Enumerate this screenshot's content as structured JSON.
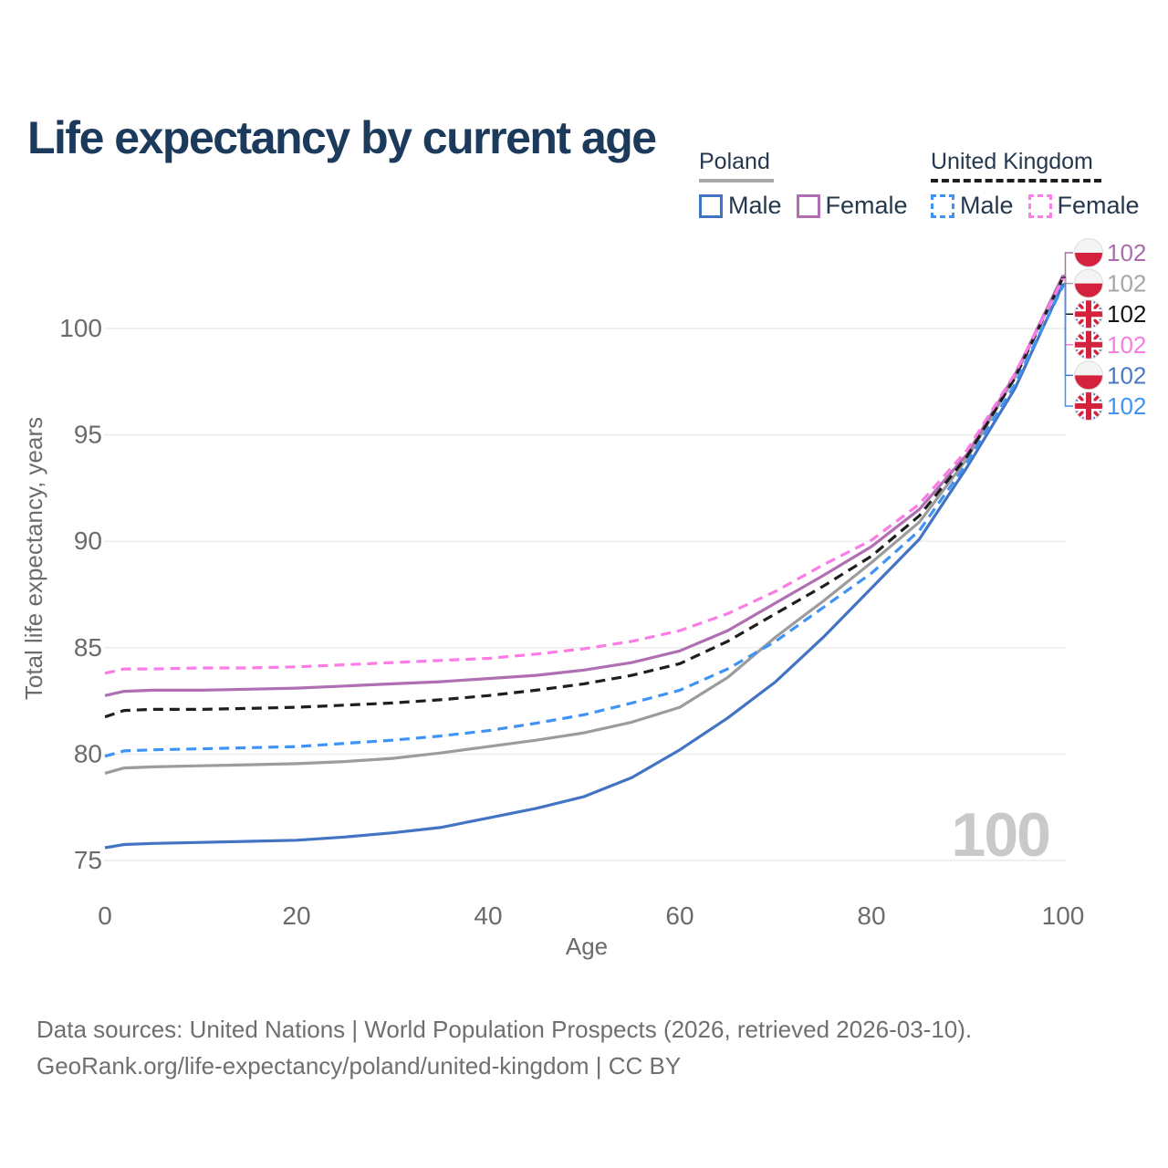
{
  "title": "Life expectancy by current age",
  "watermark": "100",
  "colors": {
    "title": "#1b3a5c",
    "grid": "#ececec",
    "axis_text": "#6b6b6b",
    "watermark": "#c9c9c9",
    "footer": "#6f6f6f",
    "legend_text": "#24384e",
    "poland_underline": "#a8a8a8",
    "uk_underline": "#1e1e1e"
  },
  "legend": {
    "poland": {
      "name": "Poland",
      "line_style": "solid",
      "underline_color": "#a8a8a8",
      "items": [
        {
          "label": "Male",
          "color": "#4374c4",
          "style": "solid"
        },
        {
          "label": "Female",
          "color": "#b06fb2",
          "style": "solid"
        }
      ]
    },
    "uk": {
      "name": "United Kingdom",
      "line_style": "dashed",
      "underline_color": "#1e1e1e",
      "items": [
        {
          "label": "Male",
          "color": "#3f93f4",
          "style": "dashed"
        },
        {
          "label": "Female",
          "color": "#fb7ce5",
          "style": "dashed"
        }
      ]
    }
  },
  "chart_data": {
    "type": "line",
    "title": "Life expectancy by current age",
    "xlabel": "Age",
    "ylabel": "Total life expectancy, years",
    "xticks": [
      0,
      20,
      40,
      60,
      80,
      100
    ],
    "yticks": [
      75,
      80,
      85,
      90,
      95,
      100
    ],
    "xlim": [
      0,
      100
    ],
    "ylim": [
      73.5,
      103
    ],
    "grid": true,
    "legend_position": "top-right",
    "x": [
      0,
      2,
      5,
      10,
      15,
      20,
      25,
      30,
      35,
      40,
      45,
      50,
      55,
      60,
      65,
      70,
      75,
      80,
      85,
      90,
      95,
      100
    ],
    "series": [
      {
        "id": "poland-male",
        "country": "Poland",
        "sex": "Male",
        "line_style": "solid",
        "color": "#4374c4",
        "label_color": "#4a79c4",
        "end_label": "102",
        "flag": "poland",
        "label_row": 4,
        "values": [
          75.6,
          75.75,
          75.8,
          75.85,
          75.9,
          75.95,
          76.1,
          76.3,
          76.55,
          77.0,
          77.45,
          78.0,
          78.9,
          80.2,
          81.7,
          83.4,
          85.5,
          87.8,
          90.1,
          93.5,
          97.2,
          102.1
        ]
      },
      {
        "id": "poland-female",
        "country": "Poland",
        "sex": "Female",
        "line_style": "solid",
        "color": "#b06fb2",
        "label_color": "#ab6bad",
        "end_label": "102",
        "flag": "poland",
        "label_row": 0,
        "values": [
          82.75,
          82.95,
          83.0,
          83.0,
          83.05,
          83.1,
          83.2,
          83.3,
          83.4,
          83.55,
          83.7,
          83.95,
          84.3,
          84.85,
          85.8,
          87.1,
          88.4,
          89.75,
          91.5,
          94.1,
          97.85,
          102.5
        ]
      },
      {
        "id": "poland-both",
        "country": "Poland",
        "sex": "Both",
        "line_style": "solid",
        "color": "#9c9c9c",
        "label_color": "#a6a6a6",
        "end_label": "102",
        "flag": "poland",
        "label_row": 1,
        "values": [
          79.1,
          79.35,
          79.4,
          79.45,
          79.5,
          79.55,
          79.65,
          79.8,
          80.05,
          80.35,
          80.65,
          81.0,
          81.5,
          82.2,
          83.6,
          85.5,
          87.2,
          89.0,
          90.9,
          93.9,
          97.75,
          102.45
        ]
      },
      {
        "id": "uk-male",
        "country": "United Kingdom",
        "sex": "Male",
        "line_style": "dashed",
        "color": "#3f93f4",
        "label_color": "#3f93f4",
        "end_label": "102",
        "flag": "uk",
        "label_row": 5,
        "values": [
          79.9,
          80.15,
          80.2,
          80.25,
          80.3,
          80.35,
          80.5,
          80.65,
          80.85,
          81.1,
          81.45,
          81.85,
          82.4,
          83.0,
          84.0,
          85.3,
          86.9,
          88.5,
          90.5,
          93.7,
          97.4,
          102.0
        ]
      },
      {
        "id": "uk-female",
        "country": "United Kingdom",
        "sex": "Female",
        "line_style": "dashed",
        "color": "#fb7ce5",
        "label_color": "#f87de2",
        "end_label": "102",
        "flag": "uk",
        "label_row": 3,
        "values": [
          83.8,
          84.0,
          84.0,
          84.05,
          84.05,
          84.1,
          84.2,
          84.3,
          84.4,
          84.5,
          84.7,
          84.95,
          85.3,
          85.8,
          86.6,
          87.65,
          88.9,
          90.05,
          91.75,
          94.3,
          97.9,
          102.35
        ]
      },
      {
        "id": "uk-both",
        "country": "United Kingdom",
        "sex": "Both",
        "line_style": "dashed",
        "color": "#1e1e1e",
        "label_color": "#141414",
        "end_label": "102",
        "flag": "uk",
        "label_row": 2,
        "values": [
          81.75,
          82.05,
          82.1,
          82.1,
          82.15,
          82.2,
          82.3,
          82.4,
          82.55,
          82.75,
          83.0,
          83.3,
          83.7,
          84.25,
          85.3,
          86.6,
          87.9,
          89.3,
          91.2,
          94.0,
          97.7,
          102.4
        ]
      }
    ]
  },
  "footer": {
    "line1": "Data sources: United Nations | World Population Prospects (2026, retrieved 2026-03-10).",
    "line2": "GeoRank.org/life-expectancy/poland/united-kingdom | CC BY"
  }
}
